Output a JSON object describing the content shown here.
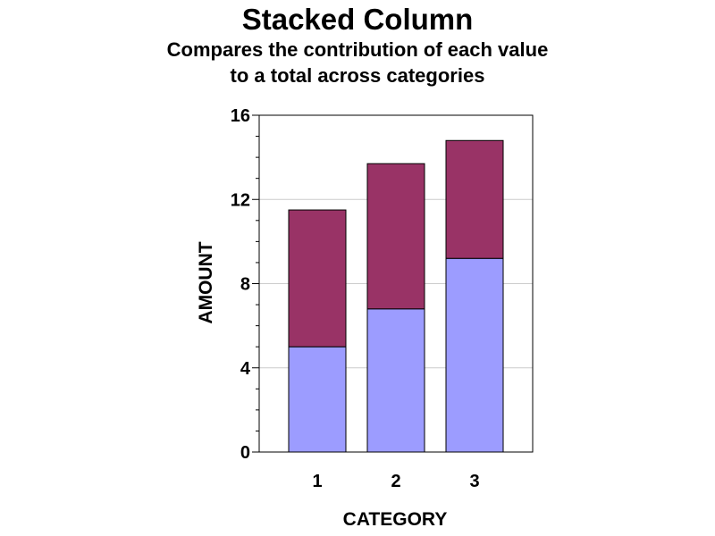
{
  "chart_data": {
    "type": "bar",
    "stacked": true,
    "title": "Stacked Column",
    "subtitle": [
      "Compares the contribution of each value",
      "to a total across categories"
    ],
    "xlabel": "CATEGORY",
    "ylabel": "AMOUNT",
    "categories": [
      "1",
      "2",
      "3"
    ],
    "ylim": [
      0,
      16
    ],
    "yticks": [
      0,
      4,
      8,
      12,
      16
    ],
    "grid": true,
    "series": [
      {
        "values": [
          5.0,
          6.8,
          9.2
        ],
        "color": "#9c9cff"
      },
      {
        "values": [
          6.5,
          6.9,
          5.6
        ],
        "color": "#993366"
      }
    ]
  }
}
